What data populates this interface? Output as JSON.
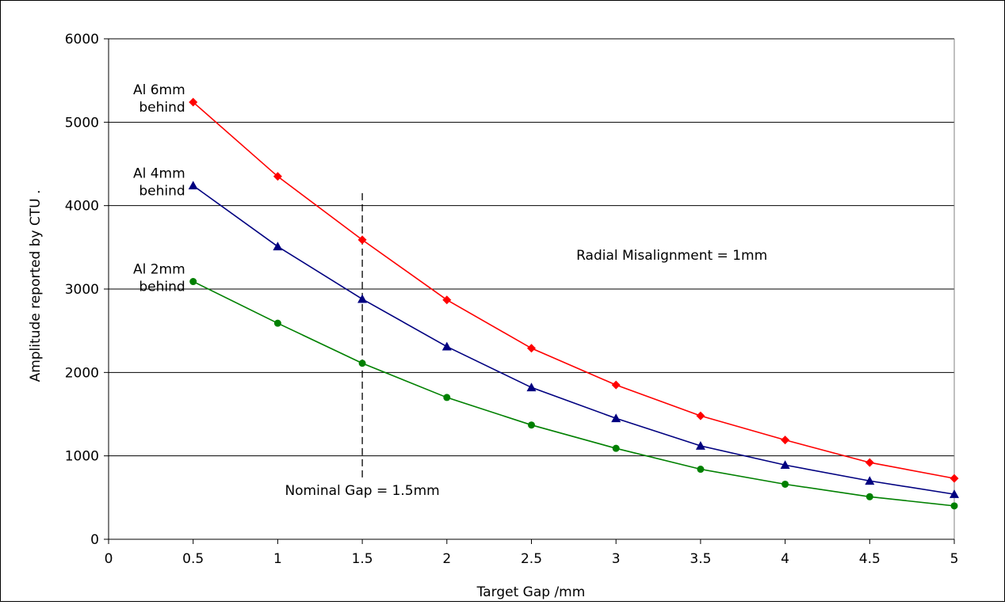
{
  "chart_data": {
    "type": "line",
    "title": "",
    "xlabel": "Target Gap /mm",
    "ylabel": "Amplitude reported by CTU .",
    "xlim": [
      0,
      5
    ],
    "ylim": [
      0,
      6000
    ],
    "x_ticks": [
      "0",
      "0.5",
      "1",
      "1.5",
      "2",
      "2.5",
      "3",
      "3.5",
      "4",
      "4.5",
      "5"
    ],
    "y_ticks": [
      "0",
      "1000",
      "2000",
      "3000",
      "4000",
      "5000",
      "6000"
    ],
    "grid": "horizontal",
    "x": [
      0.5,
      1,
      1.5,
      2,
      2.5,
      3,
      3.5,
      4,
      4.5,
      5
    ],
    "series": [
      {
        "name": "Al 6mm behind",
        "label_lines": [
          "Al 6mm",
          "behind"
        ],
        "color": "#ff0000",
        "marker": "diamond",
        "values": [
          5240,
          4350,
          3590,
          2870,
          2290,
          1850,
          1480,
          1190,
          920,
          730
        ]
      },
      {
        "name": "Al 4mm behind",
        "label_lines": [
          "Al 4mm",
          "behind"
        ],
        "color": "#000080",
        "marker": "triangle",
        "values": [
          4240,
          3510,
          2880,
          2310,
          1820,
          1450,
          1120,
          890,
          700,
          540
        ]
      },
      {
        "name": "Al 2mm behind",
        "label_lines": [
          "Al 2mm",
          "behind"
        ],
        "color": "#008000",
        "marker": "circle",
        "values": [
          3090,
          2590,
          2110,
          1700,
          1370,
          1090,
          840,
          660,
          510,
          400
        ]
      }
    ],
    "annotations": [
      {
        "text": "Radial Misalignment = 1mm",
        "x": 3.33,
        "y": 3350
      },
      {
        "text": "Nominal Gap = 1.5mm",
        "x": 1.5,
        "y": 530
      }
    ],
    "reference_line": {
      "x": 1.5,
      "y_from": 730,
      "y_to": 4150,
      "style": "dashed"
    }
  }
}
